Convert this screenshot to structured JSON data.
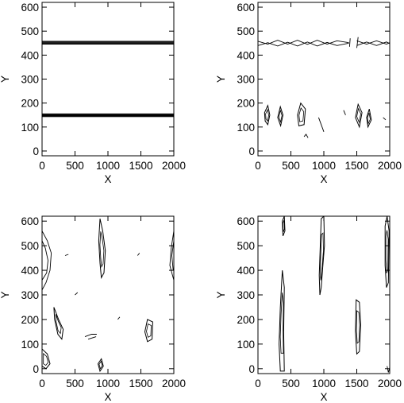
{
  "chart_data": [
    {
      "type": "contour",
      "panel": "top-left",
      "xlabel": "X",
      "ylabel": "Y",
      "xlim": [
        0,
        2000
      ],
      "ylim": [
        -20,
        620
      ],
      "x_ticks": [
        0,
        500,
        1000,
        1500,
        2000
      ],
      "y_ticks": [
        0,
        100,
        200,
        300,
        400,
        500,
        600
      ],
      "contours": [
        {
          "id": "upper-band",
          "lines": [
            [
              [
                0,
                446
              ],
              [
                2000,
                446
              ]
            ],
            [
              [
                0,
                449
              ],
              [
                2000,
                449
              ]
            ],
            [
              [
                0,
                452
              ],
              [
                2000,
                452
              ]
            ],
            [
              [
                0,
                455
              ],
              [
                2000,
                455
              ]
            ],
            [
              [
                0,
                458
              ],
              [
                2000,
                458
              ]
            ]
          ]
        },
        {
          "id": "lower-band",
          "lines": [
            [
              [
                0,
                143
              ],
              [
                2000,
                143
              ]
            ],
            [
              [
                0,
                146
              ],
              [
                2000,
                146
              ]
            ],
            [
              [
                0,
                149
              ],
              [
                2000,
                149
              ]
            ],
            [
              [
                0,
                152
              ],
              [
                2000,
                152
              ]
            ],
            [
              [
                0,
                155
              ],
              [
                2000,
                155
              ]
            ]
          ]
        }
      ]
    },
    {
      "type": "contour",
      "panel": "top-right",
      "xlabel": "X",
      "ylabel": "Y",
      "xlim": [
        0,
        2000
      ],
      "ylim": [
        -20,
        620
      ],
      "x_ticks": [
        0,
        500,
        1000,
        1500,
        2000
      ],
      "y_ticks": [
        0,
        100,
        200,
        300,
        400,
        500,
        600
      ],
      "contours": [
        {
          "id": "upper-wave",
          "lines": [
            [
              [
                0,
                440
              ],
              [
                150,
                452
              ],
              [
                300,
                438
              ],
              [
                450,
                454
              ],
              [
                600,
                438
              ],
              [
                750,
                455
              ],
              [
                900,
                438
              ],
              [
                1050,
                453
              ],
              [
                1200,
                440
              ],
              [
                1380,
                450
              ]
            ],
            [
              [
                0,
                458
              ],
              [
                150,
                446
              ],
              [
                300,
                462
              ],
              [
                450,
                446
              ],
              [
                600,
                462
              ],
              [
                750,
                445
              ],
              [
                900,
                462
              ],
              [
                1050,
                446
              ],
              [
                1200,
                460
              ],
              [
                1380,
                452
              ]
            ],
            [
              [
                1500,
                440
              ],
              [
                1650,
                455
              ],
              [
                1800,
                440
              ],
              [
                1950,
                455
              ],
              [
                2000,
                448
              ]
            ],
            [
              [
                1500,
                460
              ],
              [
                1650,
                446
              ],
              [
                1800,
                460
              ],
              [
                1950,
                446
              ],
              [
                2000,
                452
              ]
            ]
          ]
        },
        {
          "id": "break-posts",
          "lines": [
            [
              [
                1390,
                435
              ],
              [
                1400,
                470
              ]
            ],
            [
              [
                1500,
                430
              ],
              [
                1520,
                475
              ]
            ]
          ]
        },
        {
          "id": "eddy-1",
          "closed": true,
          "points": [
            [
              100,
              160
            ],
            [
              150,
              190
            ],
            [
              180,
              150
            ],
            [
              150,
              110
            ],
            [
              110,
              125
            ]
          ]
        },
        {
          "id": "eddy-2",
          "closed": true,
          "points": [
            [
              300,
              140
            ],
            [
              340,
              185
            ],
            [
              380,
              150
            ],
            [
              345,
              105
            ]
          ]
        },
        {
          "id": "eddy-3",
          "closed": true,
          "points": [
            [
              600,
              150
            ],
            [
              650,
              200
            ],
            [
              720,
              175
            ],
            [
              700,
              110
            ],
            [
              620,
              105
            ]
          ]
        },
        {
          "id": "eddy-4",
          "closed": true,
          "points": [
            [
              1480,
              140
            ],
            [
              1520,
              195
            ],
            [
              1580,
              160
            ],
            [
              1540,
              100
            ]
          ]
        },
        {
          "id": "eddy-5",
          "closed": true,
          "points": [
            [
              1650,
              140
            ],
            [
              1690,
              175
            ],
            [
              1720,
              130
            ],
            [
              1670,
              100
            ]
          ]
        },
        {
          "id": "streak",
          "lines": [
            [
              [
                920,
                140
              ],
              [
                960,
                110
              ],
              [
                1000,
                80
              ]
            ],
            [
              [
                1300,
                170
              ],
              [
                1330,
                150
              ]
            ],
            [
              [
                1900,
                140
              ],
              [
                1940,
                130
              ]
            ],
            [
              [
                700,
                60
              ],
              [
                730,
                70
              ],
              [
                760,
                55
              ]
            ]
          ]
        }
      ]
    },
    {
      "type": "contour",
      "panel": "bottom-left",
      "xlabel": "X",
      "ylabel": "Y",
      "xlim": [
        0,
        2000
      ],
      "ylim": [
        -20,
        620
      ],
      "x_ticks": [
        0,
        500,
        1000,
        1500,
        2000
      ],
      "y_ticks": [
        0,
        100,
        200,
        300,
        400,
        500,
        600
      ],
      "contours": [
        {
          "id": "left-edge",
          "lines": [
            [
              [
                0,
                560
              ],
              [
                80,
                520
              ],
              [
                140,
                470
              ],
              [
                120,
                400
              ],
              [
                60,
                350
              ],
              [
                0,
                320
              ]
            ],
            [
              [
                0,
                520
              ],
              [
                50,
                490
              ],
              [
                90,
                440
              ],
              [
                70,
                390
              ],
              [
                0,
                360
              ]
            ]
          ]
        },
        {
          "id": "left-lower",
          "closed": true,
          "points": [
            [
              180,
              250
            ],
            [
              250,
              200
            ],
            [
              320,
              160
            ],
            [
              300,
              120
            ],
            [
              240,
              140
            ],
            [
              190,
              200
            ]
          ]
        },
        {
          "id": "left-bottom",
          "closed": true,
          "points": [
            [
              0,
              80
            ],
            [
              80,
              60
            ],
            [
              120,
              20
            ],
            [
              60,
              0
            ],
            [
              0,
              10
            ]
          ]
        },
        {
          "id": "central-column",
          "closed": true,
          "points": [
            [
              880,
              610
            ],
            [
              920,
              560
            ],
            [
              960,
              480
            ],
            [
              940,
              390
            ],
            [
              900,
              370
            ],
            [
              880,
              430
            ],
            [
              860,
              520
            ]
          ]
        },
        {
          "id": "mid-bar",
          "lines": [
            [
              [
                650,
                130
              ],
              [
                750,
                140
              ],
              [
                830,
                140
              ]
            ],
            [
              [
                700,
                120
              ],
              [
                820,
                130
              ]
            ]
          ]
        },
        {
          "id": "bottom-blob",
          "closed": true,
          "points": [
            [
              850,
              20
            ],
            [
              900,
              40
            ],
            [
              930,
              10
            ],
            [
              880,
              -10
            ]
          ]
        },
        {
          "id": "right-blob",
          "closed": true,
          "points": [
            [
              1560,
              150
            ],
            [
              1600,
              200
            ],
            [
              1680,
              190
            ],
            [
              1670,
              120
            ],
            [
              1600,
              110
            ]
          ]
        },
        {
          "id": "right-edge",
          "lines": [
            [
              [
                2000,
                560
              ],
              [
                1960,
                490
              ],
              [
                1940,
                420
              ],
              [
                1980,
                380
              ],
              [
                2000,
                360
              ]
            ],
            [
              [
                2000,
                520
              ],
              [
                1970,
                460
              ],
              [
                1990,
                400
              ]
            ]
          ]
        },
        {
          "id": "small-marks",
          "lines": [
            [
              [
                350,
                460
              ],
              [
                400,
                465
              ]
            ],
            [
              [
                1450,
                460
              ],
              [
                1480,
                470
              ]
            ],
            [
              [
                500,
                300
              ],
              [
                540,
                310
              ]
            ],
            [
              [
                1150,
                200
              ],
              [
                1180,
                210
              ]
            ]
          ]
        }
      ]
    },
    {
      "type": "contour",
      "panel": "bottom-right",
      "xlabel": "X",
      "ylabel": "Y",
      "xlim": [
        0,
        2000
      ],
      "ylim": [
        -20,
        620
      ],
      "x_ticks": [
        0,
        500,
        1000,
        1500,
        2000
      ],
      "y_ticks": [
        0,
        100,
        200,
        300,
        400,
        500,
        600
      ],
      "contours": [
        {
          "id": "left-column",
          "closed": true,
          "points": [
            [
              340,
              -10
            ],
            [
              320,
              100
            ],
            [
              340,
              250
            ],
            [
              370,
              400
            ],
            [
              400,
              330
            ],
            [
              390,
              150
            ],
            [
              400,
              -10
            ]
          ]
        },
        {
          "id": "top-left-blob",
          "closed": true,
          "points": [
            [
              370,
              600
            ],
            [
              400,
              620
            ],
            [
              410,
              560
            ],
            [
              380,
              540
            ]
          ]
        },
        {
          "id": "mid-column",
          "closed": true,
          "points": [
            [
              960,
              610
            ],
            [
              1000,
              620
            ],
            [
              1010,
              500
            ],
            [
              980,
              400
            ],
            [
              960,
              330
            ],
            [
              940,
              300
            ],
            [
              930,
              380
            ]
          ]
        },
        {
          "id": "right-blob",
          "closed": true,
          "points": [
            [
              1490,
              280
            ],
            [
              1540,
              270
            ],
            [
              1560,
              180
            ],
            [
              1540,
              70
            ],
            [
              1500,
              60
            ],
            [
              1480,
              150
            ]
          ]
        },
        {
          "id": "edge-column",
          "closed": true,
          "points": [
            [
              1930,
              580
            ],
            [
              1960,
              620
            ],
            [
              1990,
              560
            ],
            [
              1980,
              350
            ],
            [
              1950,
              330
            ],
            [
              1930,
              420
            ]
          ]
        },
        {
          "id": "edge-bottom",
          "lines": [
            [
              [
                1960,
                10
              ],
              [
                1980,
                -15
              ],
              [
                2000,
                5
              ]
            ]
          ]
        }
      ]
    }
  ]
}
